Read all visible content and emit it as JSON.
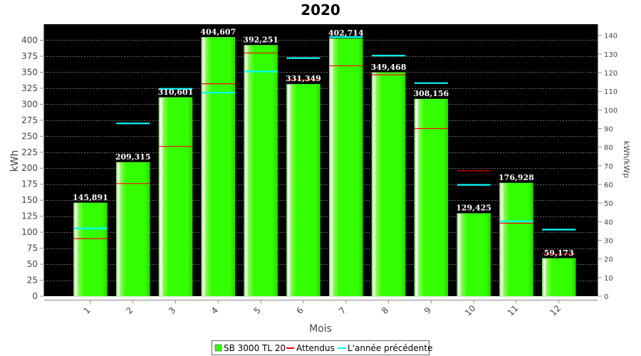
{
  "chart_data": {
    "type": "bar",
    "title": "2020",
    "xlabel": "Mois",
    "ylabel": "kWh",
    "ylabel_right": "kWh/kWp",
    "categories": [
      "1",
      "2",
      "3",
      "4",
      "5",
      "6",
      "7",
      "8",
      "9",
      "10",
      "11",
      "12"
    ],
    "ylim": [
      0,
      425
    ],
    "yticks": [
      0,
      25,
      50,
      75,
      100,
      125,
      150,
      175,
      200,
      225,
      250,
      275,
      300,
      325,
      350,
      375,
      400
    ],
    "ylim_right": [
      0,
      146
    ],
    "yticks_right": [
      0,
      10,
      20,
      30,
      40,
      50,
      60,
      70,
      80,
      90,
      100,
      110,
      120,
      130,
      140
    ],
    "grid": true,
    "legend_position": "bottom",
    "series": [
      {
        "name": "SB 3000 TL 20",
        "type": "bar",
        "color": "#33ff00",
        "values": [
          145.891,
          209.315,
          310.601,
          404.607,
          392.251,
          331.349,
          402.714,
          349.468,
          308.156,
          129.425,
          176.928,
          59.173
        ],
        "labels": [
          "145,891",
          "209,315",
          "310,601",
          "404,607",
          "392,251",
          "331,349",
          "402,714",
          "349,468",
          "308,156",
          "129,425",
          "176,928",
          "59,173"
        ]
      },
      {
        "name": "Attendus",
        "type": "marker",
        "color": "#ff0000",
        "values": [
          90,
          176,
          234,
          332,
          380,
          338,
          360,
          346,
          262,
          196,
          114,
          66
        ]
      },
      {
        "name": "L'année précédente",
        "type": "marker",
        "color": "#00ffff",
        "values": [
          106,
          270,
          324,
          318,
          351,
          372,
          405,
          376,
          333,
          174,
          117,
          104
        ]
      }
    ]
  }
}
